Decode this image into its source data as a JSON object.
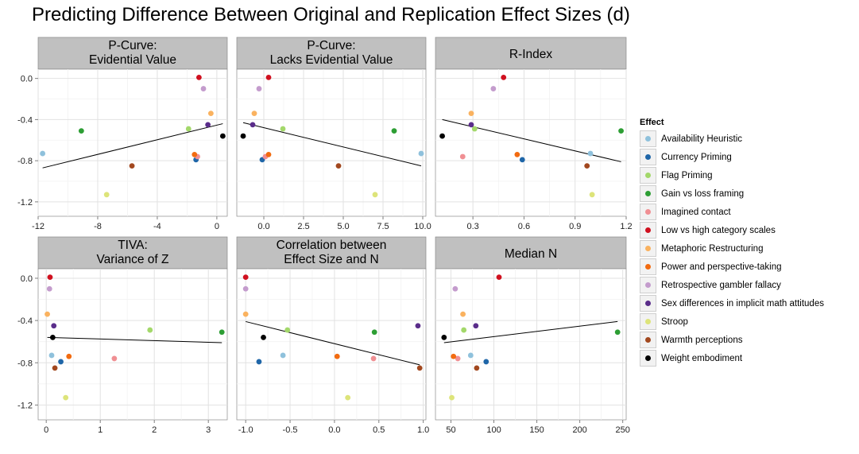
{
  "title": "Predicting Difference Between Original and Replication Effect Sizes (d)",
  "legend": {
    "title": "Effect",
    "items": [
      {
        "label": "Availability Heuristic",
        "color": "#8fc1dc"
      },
      {
        "label": "Currency Priming",
        "color": "#1f66a8"
      },
      {
        "label": "Flag Priming",
        "color": "#a3d86a"
      },
      {
        "label": "Gain vs loss framing",
        "color": "#2d9e34"
      },
      {
        "label": "Imagined contact",
        "color": "#f08f93"
      },
      {
        "label": "Low vs high category scales",
        "color": "#d0101f"
      },
      {
        "label": "Metaphoric Restructuring",
        "color": "#fab25f"
      },
      {
        "label": "Power and perspective-taking",
        "color": "#f26b10"
      },
      {
        "label": "Retrospective gambler fallacy",
        "color": "#c49ccd"
      },
      {
        "label": "Sex differences in implicit math attitudes",
        "color": "#5a2d8a"
      },
      {
        "label": "Stroop",
        "color": "#dde47a"
      },
      {
        "label": "Warmth perceptions",
        "color": "#a2481f"
      },
      {
        "label": "Weight embodiment",
        "color": "#000000"
      }
    ]
  },
  "chart_data": [
    {
      "type": "scatter",
      "title": "P-Curve:\nEvidential Value",
      "xlim": [
        -12,
        0.7
      ],
      "ylim": [
        -1.34,
        0.09
      ],
      "xticks": [
        -12,
        -8,
        -4,
        0
      ],
      "xtick_labels": [
        "-12",
        "-8",
        "-4",
        "0"
      ],
      "yticks": [
        0.0,
        -0.4,
        -0.8,
        -1.2
      ],
      "ytick_labels": [
        "0.0",
        "-0.4",
        "-0.8",
        "-1.2"
      ],
      "trend": [
        [
          -11.7,
          -0.87
        ],
        [
          0.4,
          -0.44
        ]
      ],
      "points": [
        {
          "effect": "Availability Heuristic",
          "x": -11.7,
          "y": -0.73
        },
        {
          "effect": "Currency Priming",
          "x": -1.4,
          "y": -0.79
        },
        {
          "effect": "Flag Priming",
          "x": -1.9,
          "y": -0.49
        },
        {
          "effect": "Gain vs loss framing",
          "x": -9.1,
          "y": -0.51
        },
        {
          "effect": "Imagined contact",
          "x": -1.3,
          "y": -0.76
        },
        {
          "effect": "Low vs high category scales",
          "x": -1.2,
          "y": 0.01
        },
        {
          "effect": "Metaphoric Restructuring",
          "x": -0.4,
          "y": -0.34
        },
        {
          "effect": "Power and perspective-taking",
          "x": -1.5,
          "y": -0.74
        },
        {
          "effect": "Retrospective gambler fallacy",
          "x": -0.9,
          "y": -0.1
        },
        {
          "effect": "Sex differences in implicit math attitudes",
          "x": -0.6,
          "y": -0.45
        },
        {
          "effect": "Stroop",
          "x": -7.4,
          "y": -1.13
        },
        {
          "effect": "Warmth perceptions",
          "x": -5.7,
          "y": -0.85
        },
        {
          "effect": "Weight embodiment",
          "x": 0.4,
          "y": -0.56
        }
      ]
    },
    {
      "type": "scatter",
      "title": "P-Curve:\nLacks Evidential Value",
      "xlim": [
        -1.7,
        10.2
      ],
      "ylim": [
        -1.34,
        0.09
      ],
      "xticks": [
        0,
        2.5,
        5,
        7.5,
        10
      ],
      "xtick_labels": [
        "0.0",
        "2.5",
        "5.0",
        "7.5",
        "10.0"
      ],
      "yticks": [
        0.0,
        -0.4,
        -0.8,
        -1.2
      ],
      "ytick_labels": [
        "0.0",
        "-0.4",
        "-0.8",
        "-1.2"
      ],
      "trend": [
        [
          -1.3,
          -0.43
        ],
        [
          9.9,
          -0.85
        ]
      ],
      "points": [
        {
          "effect": "Availability Heuristic",
          "x": 9.9,
          "y": -0.73
        },
        {
          "effect": "Currency Priming",
          "x": -0.1,
          "y": -0.79
        },
        {
          "effect": "Flag Priming",
          "x": 1.2,
          "y": -0.49
        },
        {
          "effect": "Gain vs loss framing",
          "x": 8.2,
          "y": -0.51
        },
        {
          "effect": "Imagined contact",
          "x": 0.1,
          "y": -0.76
        },
        {
          "effect": "Low vs high category scales",
          "x": 0.3,
          "y": 0.01
        },
        {
          "effect": "Metaphoric Restructuring",
          "x": -0.6,
          "y": -0.34
        },
        {
          "effect": "Power and perspective-taking",
          "x": 0.3,
          "y": -0.74
        },
        {
          "effect": "Retrospective gambler fallacy",
          "x": -0.3,
          "y": -0.1
        },
        {
          "effect": "Sex differences in implicit math attitudes",
          "x": -0.7,
          "y": -0.45
        },
        {
          "effect": "Stroop",
          "x": 7.0,
          "y": -1.13
        },
        {
          "effect": "Warmth perceptions",
          "x": 4.7,
          "y": -0.85
        },
        {
          "effect": "Weight embodiment",
          "x": -1.3,
          "y": -0.56
        }
      ]
    },
    {
      "type": "scatter",
      "title": "R-Index",
      "xlim": [
        0.08,
        1.2
      ],
      "ylim": [
        -1.34,
        0.09
      ],
      "xticks": [
        0.3,
        0.6,
        0.9,
        1.2
      ],
      "xtick_labels": [
        "0.3",
        "0.6",
        "0.9",
        "1.2"
      ],
      "yticks": [
        0.0,
        -0.4,
        -0.8,
        -1.2
      ],
      "ytick_labels": [
        "0.0",
        "-0.4",
        "-0.8",
        "-1.2"
      ],
      "trend": [
        [
          0.12,
          -0.4
        ],
        [
          1.17,
          -0.81
        ]
      ],
      "points": [
        {
          "effect": "Availability Heuristic",
          "x": 0.99,
          "y": -0.73
        },
        {
          "effect": "Currency Priming",
          "x": 0.59,
          "y": -0.79
        },
        {
          "effect": "Flag Priming",
          "x": 0.31,
          "y": -0.49
        },
        {
          "effect": "Gain vs loss framing",
          "x": 1.17,
          "y": -0.51
        },
        {
          "effect": "Imagined contact",
          "x": 0.24,
          "y": -0.76
        },
        {
          "effect": "Low vs high category scales",
          "x": 0.48,
          "y": 0.01
        },
        {
          "effect": "Metaphoric Restructuring",
          "x": 0.29,
          "y": -0.34
        },
        {
          "effect": "Power and perspective-taking",
          "x": 0.56,
          "y": -0.74
        },
        {
          "effect": "Retrospective gambler fallacy",
          "x": 0.42,
          "y": -0.1
        },
        {
          "effect": "Sex differences in implicit math attitudes",
          "x": 0.29,
          "y": -0.45
        },
        {
          "effect": "Stroop",
          "x": 1.0,
          "y": -1.13
        },
        {
          "effect": "Warmth perceptions",
          "x": 0.97,
          "y": -0.85
        },
        {
          "effect": "Weight embodiment",
          "x": 0.12,
          "y": -0.56
        }
      ]
    },
    {
      "type": "scatter",
      "title": "TIVA:\nVariance of Z",
      "xlim": [
        -0.15,
        3.35
      ],
      "ylim": [
        -1.34,
        0.09
      ],
      "xticks": [
        0,
        1,
        2,
        3
      ],
      "xtick_labels": [
        "0",
        "1",
        "2",
        "3"
      ],
      "yticks": [
        0.0,
        -0.4,
        -0.8,
        -1.2
      ],
      "ytick_labels": [
        "0.0",
        "-0.4",
        "-0.8",
        "-1.2"
      ],
      "trend": [
        [
          0.02,
          -0.56
        ],
        [
          3.25,
          -0.61
        ]
      ],
      "points": [
        {
          "effect": "Availability Heuristic",
          "x": 0.1,
          "y": -0.73
        },
        {
          "effect": "Currency Priming",
          "x": 0.27,
          "y": -0.79
        },
        {
          "effect": "Flag Priming",
          "x": 1.92,
          "y": -0.49
        },
        {
          "effect": "Gain vs loss framing",
          "x": 3.25,
          "y": -0.51
        },
        {
          "effect": "Imagined contact",
          "x": 1.26,
          "y": -0.76
        },
        {
          "effect": "Low vs high category scales",
          "x": 0.07,
          "y": 0.01
        },
        {
          "effect": "Metaphoric Restructuring",
          "x": 0.02,
          "y": -0.34
        },
        {
          "effect": "Power and perspective-taking",
          "x": 0.42,
          "y": -0.74
        },
        {
          "effect": "Retrospective gambler fallacy",
          "x": 0.06,
          "y": -0.1
        },
        {
          "effect": "Sex differences in implicit math attitudes",
          "x": 0.14,
          "y": -0.45
        },
        {
          "effect": "Stroop",
          "x": 0.36,
          "y": -1.13
        },
        {
          "effect": "Warmth perceptions",
          "x": 0.16,
          "y": -0.85
        },
        {
          "effect": "Weight embodiment",
          "x": 0.12,
          "y": -0.56
        }
      ]
    },
    {
      "type": "scatter",
      "title": "Correlation between\nEffect Size and N",
      "xlim": [
        -1.1,
        1.03
      ],
      "ylim": [
        -1.34,
        0.09
      ],
      "xticks": [
        -1.0,
        -0.5,
        0.0,
        0.5,
        1.0
      ],
      "xtick_labels": [
        "-1.0",
        "-0.5",
        "0.0",
        "0.5",
        "1.0"
      ],
      "yticks": [
        0.0,
        -0.4,
        -0.8,
        -1.2
      ],
      "ytick_labels": [
        "0.0",
        "-0.4",
        "-0.8",
        "-1.2"
      ],
      "trend": [
        [
          -1.0,
          -0.41
        ],
        [
          0.96,
          -0.82
        ]
      ],
      "points": [
        {
          "effect": "Availability Heuristic",
          "x": -0.58,
          "y": -0.73
        },
        {
          "effect": "Currency Priming",
          "x": -0.85,
          "y": -0.79
        },
        {
          "effect": "Flag Priming",
          "x": -0.53,
          "y": -0.49
        },
        {
          "effect": "Gain vs loss framing",
          "x": 0.45,
          "y": -0.51
        },
        {
          "effect": "Imagined contact",
          "x": 0.44,
          "y": -0.76
        },
        {
          "effect": "Low vs high category scales",
          "x": -1.0,
          "y": 0.01
        },
        {
          "effect": "Metaphoric Restructuring",
          "x": -1.0,
          "y": -0.34
        },
        {
          "effect": "Power and perspective-taking",
          "x": 0.03,
          "y": -0.74
        },
        {
          "effect": "Retrospective gambler fallacy",
          "x": -1.0,
          "y": -0.1
        },
        {
          "effect": "Sex differences in implicit math attitudes",
          "x": 0.94,
          "y": -0.45
        },
        {
          "effect": "Stroop",
          "x": 0.15,
          "y": -1.13
        },
        {
          "effect": "Warmth perceptions",
          "x": 0.96,
          "y": -0.85
        },
        {
          "effect": "Weight embodiment",
          "x": -0.8,
          "y": -0.56
        }
      ]
    },
    {
      "type": "scatter",
      "title": "Median N",
      "xlim": [
        32,
        254
      ],
      "ylim": [
        -1.34,
        0.09
      ],
      "xticks": [
        50,
        100,
        150,
        200,
        250
      ],
      "xtick_labels": [
        "50",
        "100",
        "150",
        "200",
        "250"
      ],
      "yticks": [
        0.0,
        -0.4,
        -0.8,
        -1.2
      ],
      "ytick_labels": [
        "0.0",
        "-0.4",
        "-0.8",
        "-1.2"
      ],
      "trend": [
        [
          42,
          -0.61
        ],
        [
          244,
          -0.41
        ]
      ],
      "points": [
        {
          "effect": "Availability Heuristic",
          "x": 73,
          "y": -0.73
        },
        {
          "effect": "Currency Priming",
          "x": 91,
          "y": -0.79
        },
        {
          "effect": "Flag Priming",
          "x": 65,
          "y": -0.49
        },
        {
          "effect": "Gain vs loss framing",
          "x": 244,
          "y": -0.51
        },
        {
          "effect": "Imagined contact",
          "x": 58,
          "y": -0.76
        },
        {
          "effect": "Low vs high category scales",
          "x": 106,
          "y": 0.01
        },
        {
          "effect": "Metaphoric Restructuring",
          "x": 64,
          "y": -0.34
        },
        {
          "effect": "Power and perspective-taking",
          "x": 53,
          "y": -0.74
        },
        {
          "effect": "Retrospective gambler fallacy",
          "x": 55,
          "y": -0.1
        },
        {
          "effect": "Sex differences in implicit math attitudes",
          "x": 79,
          "y": -0.45
        },
        {
          "effect": "Stroop",
          "x": 51,
          "y": -1.13
        },
        {
          "effect": "Warmth perceptions",
          "x": 80,
          "y": -0.85
        },
        {
          "effect": "Weight embodiment",
          "x": 42,
          "y": -0.56
        }
      ]
    }
  ]
}
